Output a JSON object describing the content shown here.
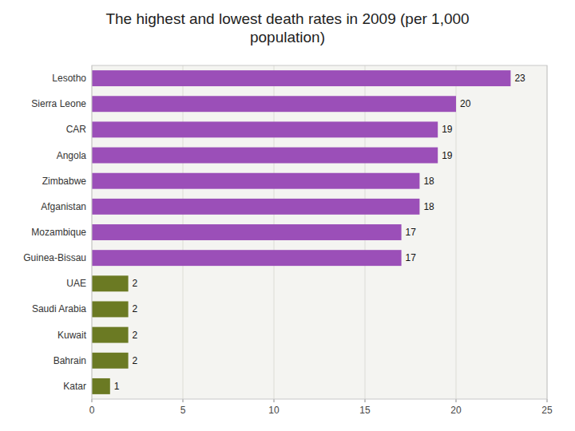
{
  "chart_data": {
    "type": "bar",
    "orientation": "horizontal",
    "title": "The highest and lowest death rates in 2009 (per 1,000\npopulation)",
    "categories": [
      "Lesotho",
      "Sierra Leone",
      "CAR",
      "Angola",
      "Zimbabwe",
      "Afganistan",
      "Mozambique",
      "Guinea-Bissau",
      "UAE",
      "Saudi Arabia",
      "Kuwait",
      "Bahrain",
      "Katar"
    ],
    "values": [
      23,
      20,
      19,
      19,
      18,
      18,
      17,
      17,
      2,
      2,
      2,
      2,
      1
    ],
    "colors": [
      "#9b4fb8",
      "#9b4fb8",
      "#9b4fb8",
      "#9b4fb8",
      "#9b4fb8",
      "#9b4fb8",
      "#9b4fb8",
      "#9b4fb8",
      "#6b7a23",
      "#6b7a23",
      "#6b7a23",
      "#6b7a23",
      "#6b7a23"
    ],
    "xlim": [
      0,
      25
    ],
    "xticks": [
      0,
      5,
      10,
      15,
      20,
      25
    ],
    "grid": true,
    "data_labels": true
  }
}
